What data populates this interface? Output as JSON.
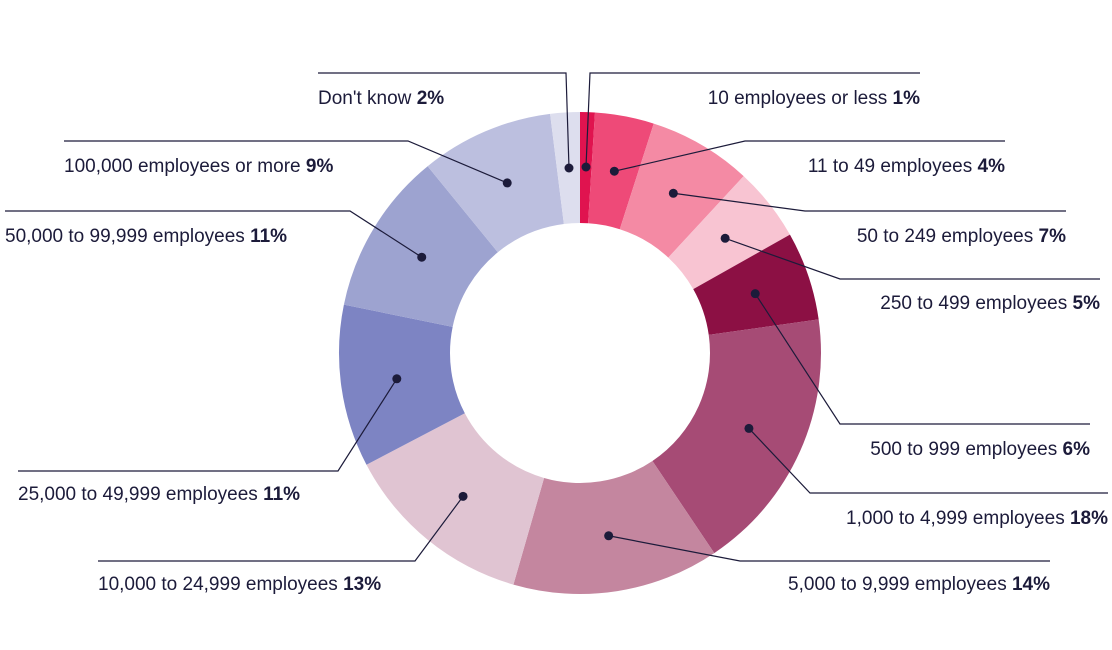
{
  "chart_data": {
    "type": "pie",
    "donut": true,
    "start_angle_deg": 0,
    "direction": "clockwise",
    "slices": [
      {
        "label": "10 employees or less",
        "value": 1,
        "value_label": "1%",
        "color": "#e0134f"
      },
      {
        "label": "11 to 49 employees",
        "value": 4,
        "value_label": "4%",
        "color": "#ee4a78"
      },
      {
        "label": "50 to 249 employees",
        "value": 7,
        "value_label": "7%",
        "color": "#f48aa4"
      },
      {
        "label": "250 to 499 employees",
        "value": 5,
        "value_label": "5%",
        "color": "#f8c4d2"
      },
      {
        "label": "500 to 999 employees",
        "value": 6,
        "value_label": "6%",
        "color": "#8c1044"
      },
      {
        "label": "1,000 to 4,999 employees",
        "value": 18,
        "value_label": "18%",
        "color": "#a64b75"
      },
      {
        "label": "5,000 to 9,999 employees",
        "value": 14,
        "value_label": "14%",
        "color": "#c4869f"
      },
      {
        "label": "10,000 to 24,999 employees",
        "value": 13,
        "value_label": "13%",
        "color": "#e0c4d2"
      },
      {
        "label": "25,000 to 49,999 employees",
        "value": 11,
        "value_label": "11%",
        "color": "#7d84c3"
      },
      {
        "label": "50,000 to 99,999 employees",
        "value": 11,
        "value_label": "11%",
        "color": "#9da3d0"
      },
      {
        "label": "100,000 employees or more",
        "value": 9,
        "value_label": "9%",
        "color": "#bcbfdf"
      },
      {
        "label": "Don't know",
        "value": 2,
        "value_label": "2%",
        "color": "#dddeee"
      }
    ]
  }
}
